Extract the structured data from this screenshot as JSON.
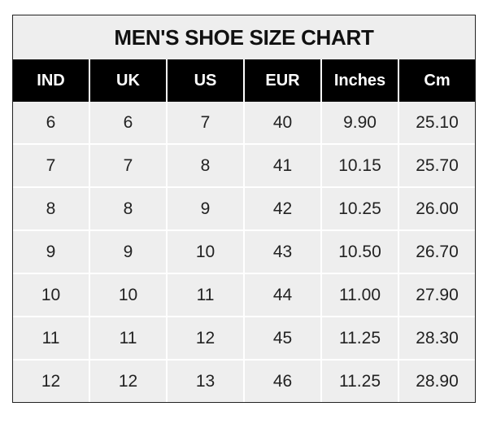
{
  "title": "MEN'S SHOE SIZE CHART",
  "columns": [
    "IND",
    "UK",
    "US",
    "EUR",
    "Inches",
    "Cm"
  ],
  "rows": [
    [
      "6",
      "6",
      "7",
      "40",
      "9.90",
      "25.10"
    ],
    [
      "7",
      "7",
      "8",
      "41",
      "10.15",
      "25.70"
    ],
    [
      "8",
      "8",
      "9",
      "42",
      "10.25",
      "26.00"
    ],
    [
      "9",
      "9",
      "10",
      "43",
      "10.50",
      "26.70"
    ],
    [
      "10",
      "10",
      "11",
      "44",
      "11.00",
      "27.90"
    ],
    [
      "11",
      "11",
      "12",
      "45",
      "11.25",
      "28.30"
    ],
    [
      "12",
      "12",
      "13",
      "46",
      "11.25",
      "28.90"
    ]
  ],
  "colors": {
    "header_bg": "#000000",
    "cell_bg": "#eeeeee",
    "grid": "#ffffff"
  }
}
